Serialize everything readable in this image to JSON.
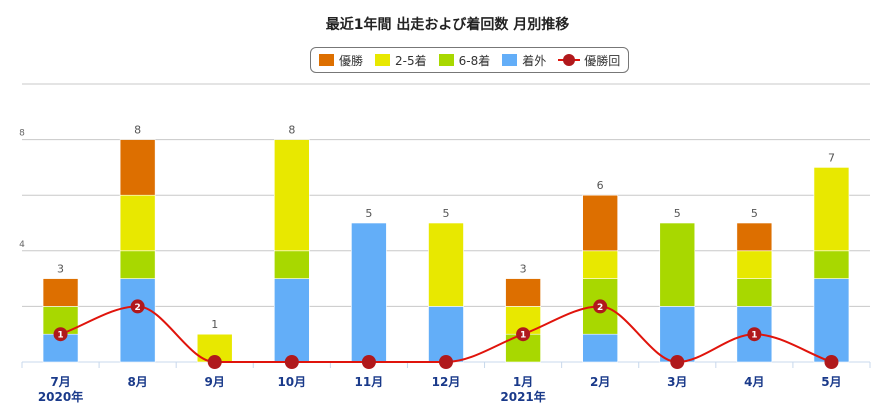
{
  "chart_data": {
    "type": "bar",
    "title": "最近1年間 出走および着回数 月別推移",
    "categories": [
      "7月",
      "8月",
      "9月",
      "10月",
      "11月",
      "12月",
      "1月",
      "2月",
      "3月",
      "4月",
      "5月"
    ],
    "year_labels": [
      "2020年",
      "",
      "",
      "",
      "",
      "",
      "2021年",
      "",
      "",
      "",
      ""
    ],
    "series": [
      {
        "name": "着外",
        "color": "#63aef8",
        "values": [
          1,
          3,
          0,
          3,
          5,
          2,
          0,
          1,
          2,
          2,
          3
        ]
      },
      {
        "name": "6-8着",
        "color": "#a8d800",
        "values": [
          1,
          1,
          0,
          1,
          0,
          0,
          1,
          2,
          3,
          1,
          1
        ]
      },
      {
        "name": "2-5着",
        "color": "#e8e800",
        "values": [
          0,
          2,
          1,
          4,
          0,
          3,
          1,
          1,
          0,
          1,
          3
        ]
      },
      {
        "name": "優勝",
        "color": "#dd6f00",
        "values": [
          1,
          2,
          0,
          0,
          0,
          0,
          1,
          2,
          0,
          1,
          0
        ]
      }
    ],
    "totals": [
      "3",
      "8",
      "1",
      "8",
      "5",
      "5",
      "3",
      "6",
      "5",
      "5",
      "7"
    ],
    "wins_line": {
      "name": "優勝回",
      "color": "#e0140c",
      "marker_color": "#b0191c",
      "values": [
        1,
        2,
        0,
        0,
        0,
        0,
        1,
        2,
        0,
        1,
        0
      ],
      "labels": [
        "1",
        "2",
        "",
        "",
        "",
        "",
        "1",
        "2",
        "",
        "1",
        ""
      ]
    },
    "y_ticks": [
      "4",
      "8"
    ],
    "ylim": [
      0,
      8
    ]
  },
  "legend": [
    {
      "label": "優勝",
      "color": "#dd6f00",
      "kind": "bar"
    },
    {
      "label": "2-5着",
      "color": "#e8e800",
      "kind": "bar"
    },
    {
      "label": "6-8着",
      "color": "#a8d800",
      "kind": "bar"
    },
    {
      "label": "着外",
      "color": "#63aef8",
      "kind": "bar"
    },
    {
      "label": "優勝回",
      "color": "#b0191c",
      "kind": "line"
    }
  ]
}
